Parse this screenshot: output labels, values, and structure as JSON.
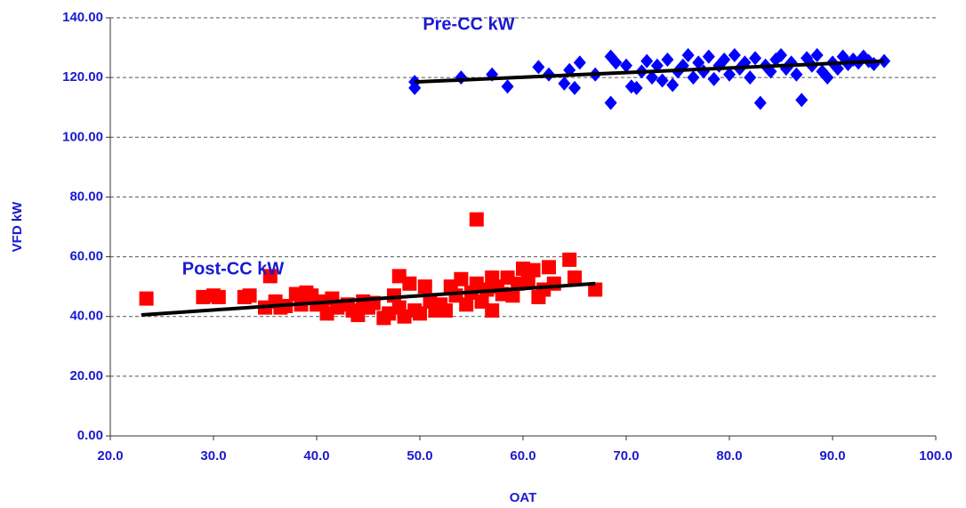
{
  "chart_data": {
    "type": "scatter",
    "x_label": "OAT",
    "y_label": "VFD kW",
    "xlim": [
      20,
      100
    ],
    "xticks": [
      {
        "value": 20,
        "label": "20.0"
      },
      {
        "value": 30,
        "label": "30.0"
      },
      {
        "value": 40,
        "label": "40.0"
      },
      {
        "value": 50,
        "label": "50.0"
      },
      {
        "value": 60,
        "label": "60.0"
      },
      {
        "value": 70,
        "label": "70.0"
      },
      {
        "value": 80,
        "label": "80.0"
      },
      {
        "value": 90,
        "label": "90.0"
      },
      {
        "value": 100,
        "label": "100.0"
      }
    ],
    "ylim": [
      0,
      140
    ],
    "yticks": [
      {
        "value": 0,
        "label": "0.00"
      },
      {
        "value": 20,
        "label": "20.00"
      },
      {
        "value": 40,
        "label": "40.00"
      },
      {
        "value": 60,
        "label": "60.00"
      },
      {
        "value": 80,
        "label": "80.00"
      },
      {
        "value": 100,
        "label": "100.00"
      },
      {
        "value": 120,
        "label": "120.00"
      },
      {
        "value": 140,
        "label": "140.00"
      }
    ],
    "grid": true,
    "series": [
      {
        "name": "Pre-CC kW",
        "color": "#0000ff",
        "marker": "diamond",
        "x": [
          49.5,
          49.5,
          54,
          57,
          58.5,
          61.5,
          62.5,
          64,
          64.5,
          65,
          65.5,
          67,
          68.5,
          68.5,
          69,
          70,
          70.5,
          71,
          71.5,
          72,
          72.5,
          73,
          73.5,
          74,
          74.5,
          75,
          75.5,
          76,
          76.5,
          77,
          77.5,
          78,
          78.5,
          79,
          79.5,
          80,
          80.5,
          81,
          81.5,
          82,
          82.5,
          83,
          83.5,
          84,
          84.5,
          85,
          85.5,
          86,
          86.5,
          87,
          87.5,
          88,
          88.5,
          89,
          89.5,
          90,
          90.5,
          91,
          91.5,
          92,
          92.5,
          93,
          93.5,
          94,
          95
        ],
        "values": [
          118.5,
          116.5,
          120,
          121,
          117,
          123.5,
          121,
          118,
          122.5,
          116.5,
          125,
          121,
          111.5,
          127,
          125,
          124,
          117,
          116.5,
          122,
          125.5,
          120,
          124,
          119,
          126,
          117.5,
          122,
          124,
          127.5,
          120,
          125,
          122,
          127,
          119.5,
          124,
          126,
          121,
          127.5,
          123,
          125,
          120,
          126.5,
          111.5,
          124,
          122,
          126,
          127.5,
          123,
          125,
          121,
          112.5,
          126.5,
          124,
          127.5,
          122,
          120,
          125,
          123,
          127,
          124.5,
          126,
          125,
          127,
          125.5,
          124.5,
          125.5
        ],
        "trend_x": [
          49.5,
          95
        ],
        "trend_values": [
          118.5,
          125.5
        ]
      },
      {
        "name": "Post-CC kW",
        "color": "#ff0000",
        "marker": "square",
        "x": [
          23.5,
          29,
          30,
          30.5,
          33,
          33.5,
          35,
          35.5,
          36,
          36.5,
          37,
          38,
          38.5,
          39,
          39.5,
          40,
          40.5,
          41,
          41.5,
          42,
          43,
          43.5,
          44,
          44.5,
          45,
          45.5,
          46.5,
          47,
          47.5,
          48,
          48,
          48.5,
          49,
          49.5,
          50,
          50.5,
          51,
          51.5,
          52,
          52.5,
          53,
          53.5,
          54,
          54.5,
          55,
          55.5,
          55.5,
          56,
          56.5,
          57,
          57,
          57.5,
          58,
          58.5,
          59,
          59.5,
          60,
          60.5,
          61,
          61.5,
          62,
          62.5,
          63,
          64.5,
          65,
          67
        ],
        "values": [
          46,
          46.5,
          47,
          46.5,
          46.5,
          47,
          43,
          53.5,
          45,
          43,
          43.5,
          47.5,
          44,
          48,
          47,
          44,
          45,
          41,
          46,
          43,
          44,
          42,
          40.5,
          45,
          43,
          44.5,
          39.5,
          41,
          47,
          43,
          53.5,
          40,
          51,
          42,
          41,
          50,
          45,
          42,
          44,
          42,
          50,
          47,
          52.5,
          44,
          48,
          72.5,
          51,
          45,
          49,
          42,
          53,
          50,
          47.5,
          53,
          47,
          51,
          56,
          52,
          55.5,
          46.5,
          49,
          56.5,
          51,
          59,
          53,
          49
        ],
        "trend_x": [
          23,
          67
        ],
        "trend_values": [
          40.5,
          51
        ]
      }
    ],
    "trend_color": "#000000"
  }
}
